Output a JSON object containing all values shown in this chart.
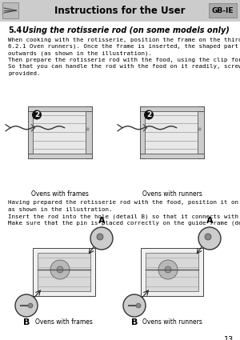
{
  "page_title": "Instructions for the User",
  "country_code": "GB-IE",
  "section_number": "5.4",
  "section_title": "Using the rotisserie rod (on some models only)",
  "body_text_1_lines": [
    "When cooking with the rotisserie, position the frame on the third runner (see",
    "6.2.1 Oven runners). Once the frame is inserted, the shaped part must sit facing",
    "outwards (as shown in the illustration).",
    "Then prepare the rotisserie rod with the food, using the clip forks provided.",
    "So that you can handle the rod with the food on it readily, screw on the handle",
    "provided."
  ],
  "label_frames_top": "Ovens with frames",
  "label_runners_top": "Ovens with runners",
  "body_text_2_lines": [
    "Having prepared the rotisserie rod with the food, position it on the guide frame",
    "as shown in the illustration.",
    "Insert the rod into the hole (detail B) so that it connects with the rotisserie motor.",
    "Make sure that the pin is placed correctly on the guide frame (detail A)."
  ],
  "label_frames_bottom": "Ovens with frames",
  "label_runners_bottom": "Ovens with runners",
  "page_number": "13",
  "header_bg": "#cccccc",
  "header_text_color": "#000000",
  "body_bg": "#ffffff",
  "body_text_color": "#000000",
  "cc_bg": "#aaaaaa",
  "badge_bg": "#111111",
  "badge_fg": "#ffffff",
  "oven_outer": "#555555",
  "oven_inner": "#dddddd",
  "oven_fill": "#f0f0f0"
}
